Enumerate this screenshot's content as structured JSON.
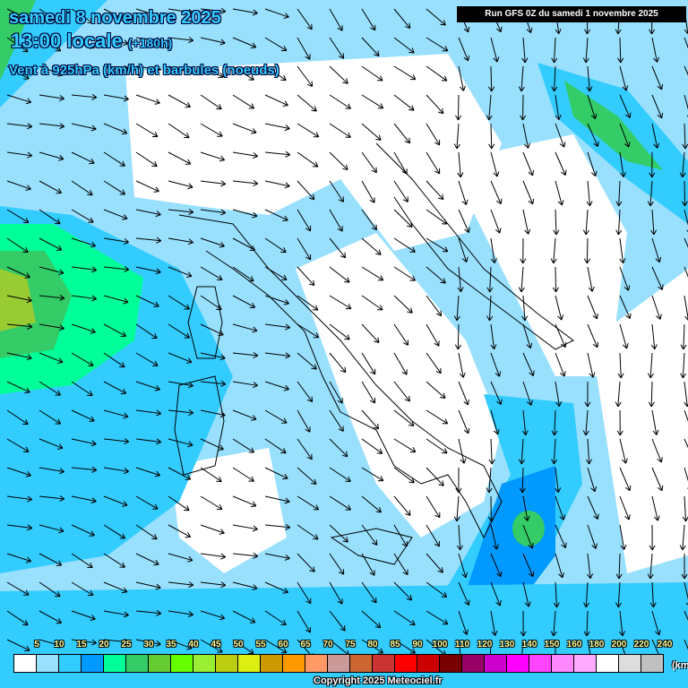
{
  "header": {
    "date": "samedi 8 novembre 2025",
    "time": "13:00 locale",
    "lead": "(+180h)",
    "variable": "Vent à 925hPa (km/h) et barbules (noeuds)",
    "run": "Run GFS 0Z du samedi 1 novembre 2025"
  },
  "legend": {
    "labels": [
      "5",
      "10",
      "15",
      "20",
      "25",
      "30",
      "35",
      "40",
      "45",
      "50",
      "55",
      "60",
      "65",
      "70",
      "75",
      "80",
      "85",
      "90",
      "100",
      "110",
      "120",
      "130",
      "140",
      "150",
      "160",
      "180",
      "200",
      "220",
      "240"
    ],
    "colors": [
      "#ffffff",
      "#99e0ff",
      "#33ccff",
      "#0099ff",
      "#00ff99",
      "#33cc66",
      "#66cc33",
      "#66ff00",
      "#99ee33",
      "#bbcc11",
      "#ddee11",
      "#cc9900",
      "#ff9900",
      "#ff9966",
      "#cc9999",
      "#cc6633",
      "#cc3333",
      "#ff0000",
      "#cc0000",
      "#770000",
      "#990066",
      "#cc00cc",
      "#ff00ff",
      "#ff44ff",
      "#ff88ff",
      "#ffaaff",
      "#ffffff",
      "#dddddd",
      "#c0c0c0"
    ],
    "unit": "(km/h)"
  },
  "copyright": "Copyright 2025 Meteociel.fr"
}
